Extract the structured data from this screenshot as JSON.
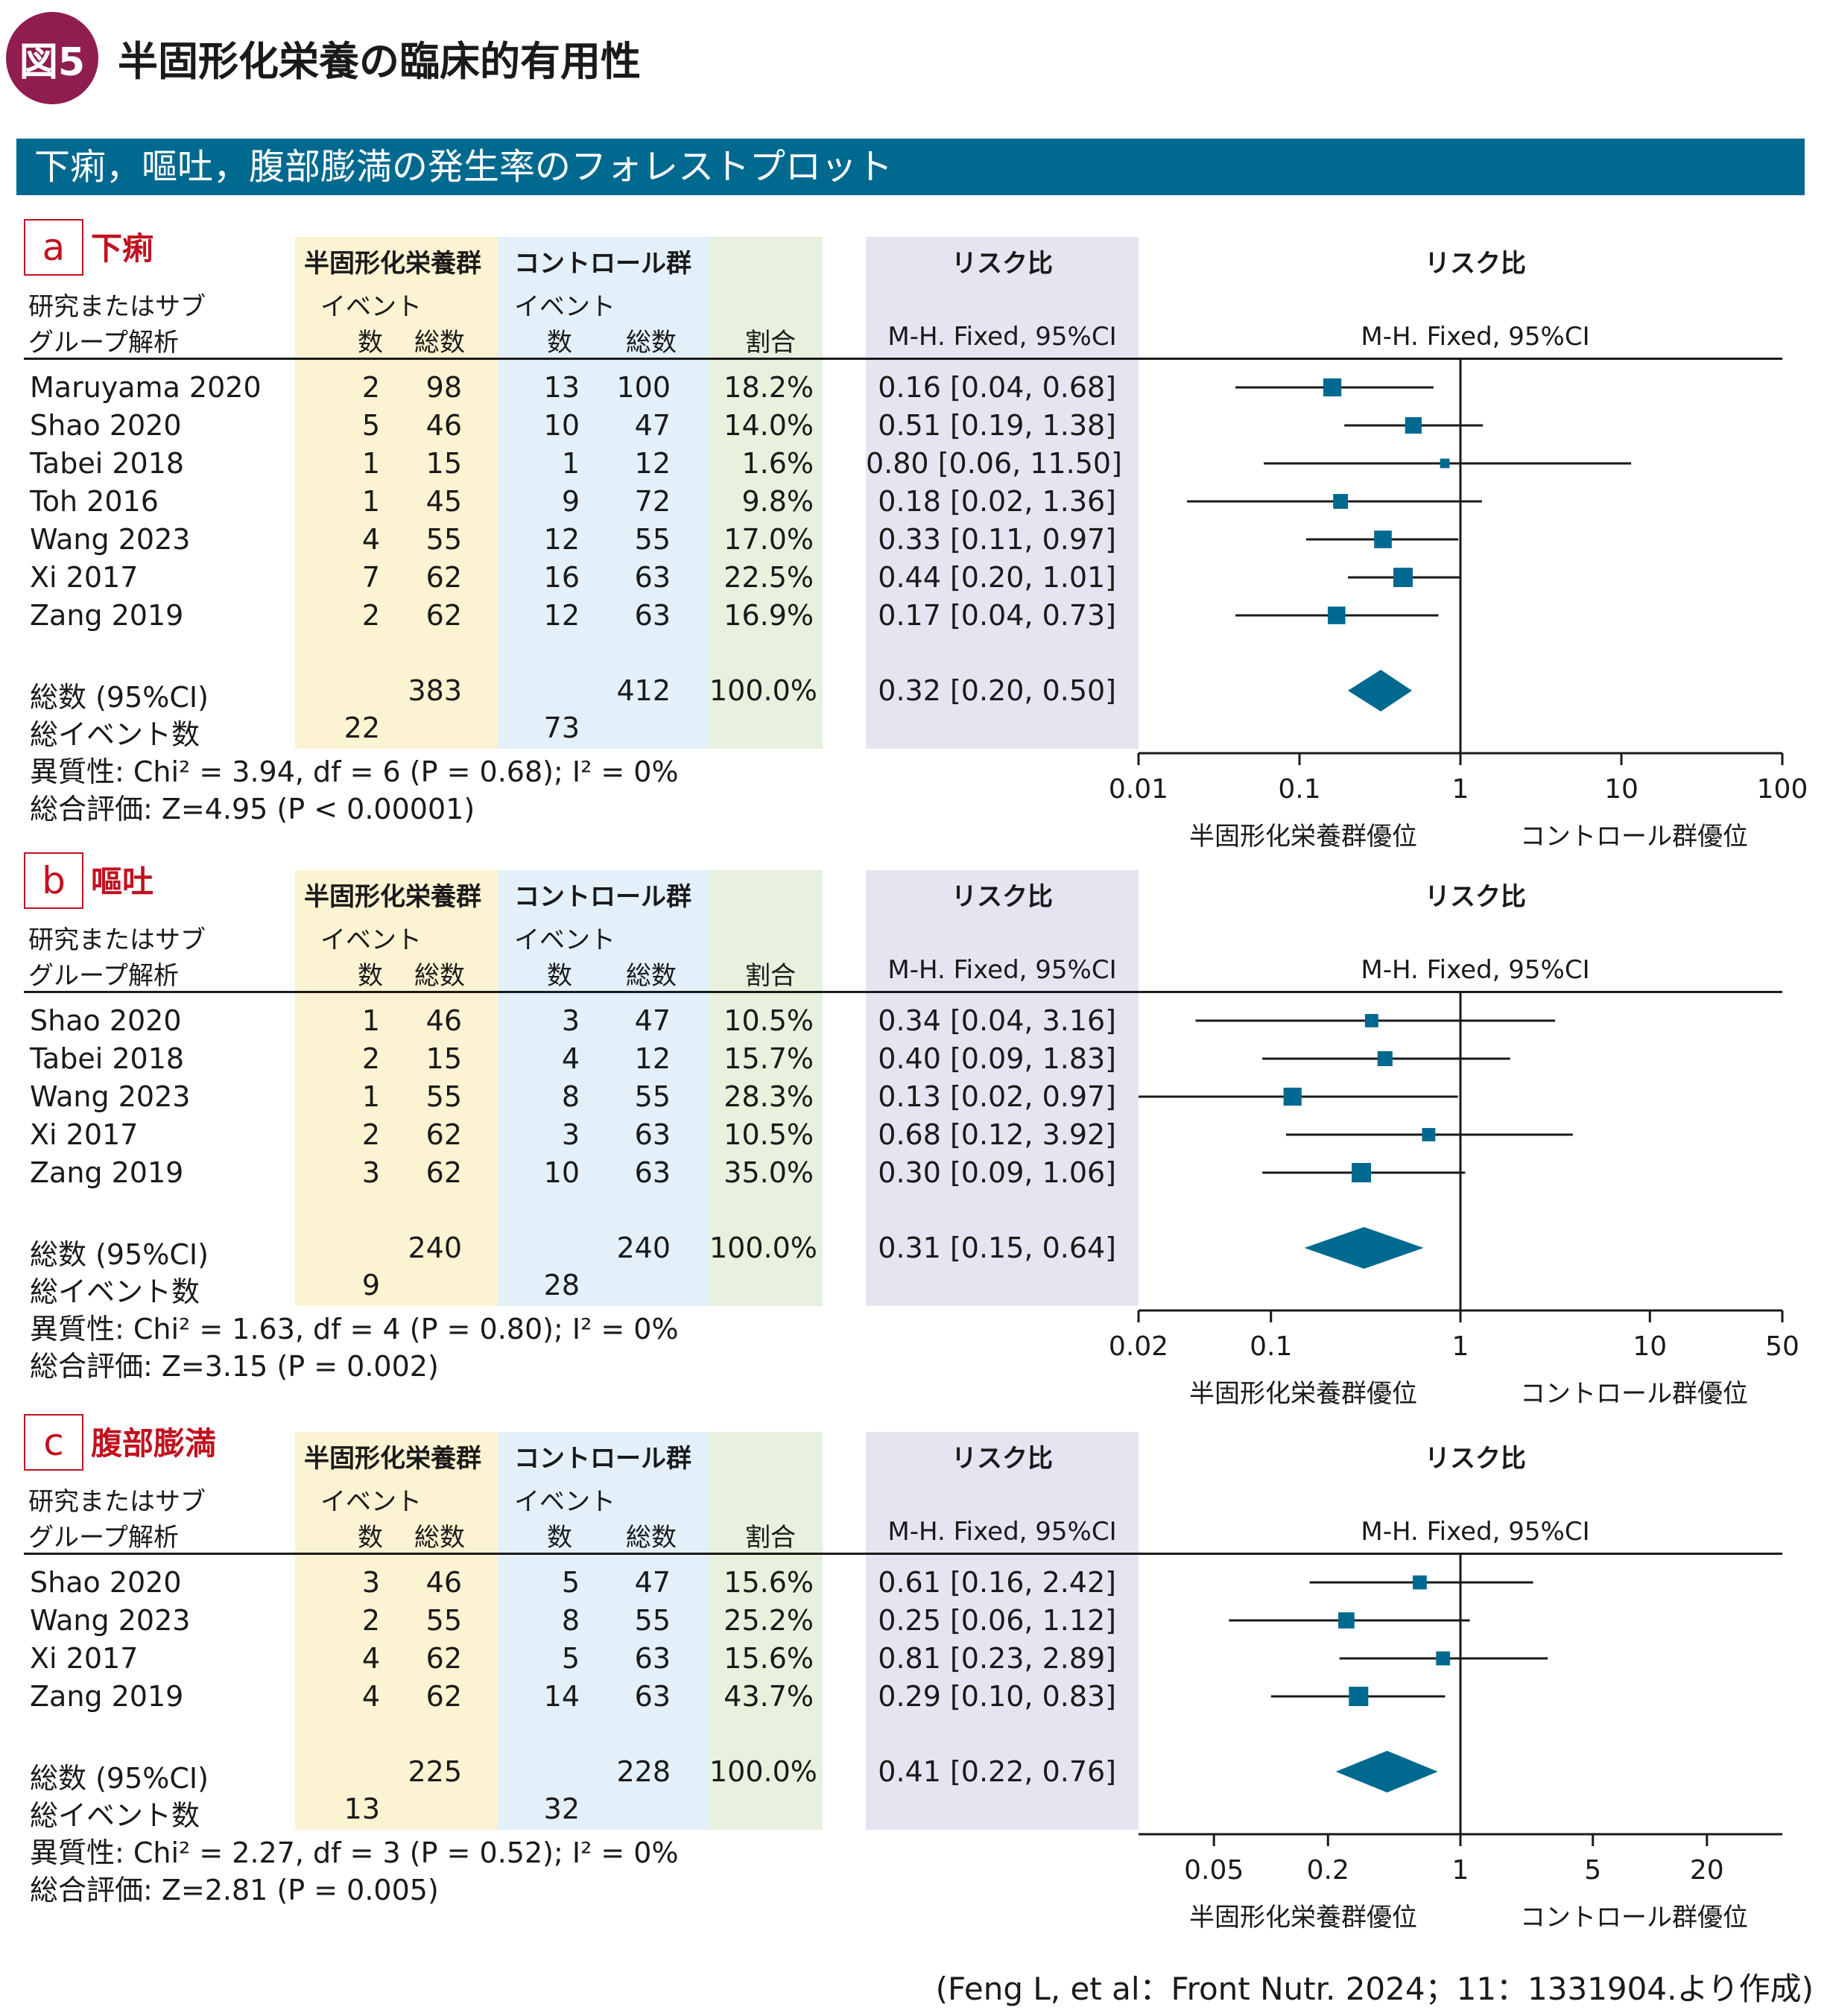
{
  "figure": {
    "badge": "図5",
    "title": "半固形化栄養の臨床的有用性"
  },
  "banner": "下痢，嘔吐，腹部膨満の発生率のフォレストプロット",
  "headers": {
    "experimental": "半固形化栄養群",
    "control": "コントロール群",
    "study_line1": "研究またはサブ",
    "study_line2": "グループ解析",
    "events": "イベント",
    "count": "数",
    "total": "総数",
    "weight": "割合",
    "rr": "リスク比",
    "method": "M-H. Fixed, 95%CI"
  },
  "labels": {
    "total_row": "総数 (95%CI)",
    "events_row": "総イベント数"
  },
  "favours": {
    "left": "半固形化栄養群優位",
    "right": "コントロール群優位"
  },
  "colors": {
    "accent": "#00698f",
    "badge": "#8f1d4f",
    "tag": "#c1121f"
  },
  "footnote": "(Feng L, et al：Front Nutr. 2024；11：1331904.より作成)",
  "chart_data": [
    {
      "type": "forest",
      "letter": "a",
      "outcome": "下痢",
      "scale": "log",
      "xlim": [
        0.01,
        100
      ],
      "ticks": [
        0.01,
        0.1,
        1,
        10,
        100
      ],
      "tick_labels": [
        "0.01",
        "0.1",
        "1",
        "10",
        "100"
      ],
      "studies": [
        {
          "name": "Maruyama 2020",
          "e_events": "2",
          "e_total": "98",
          "c_events": "13",
          "c_total": "100",
          "weight": "18.2%",
          "rr_text": "0.16 [0.04, 0.68]",
          "rr": 0.16,
          "lo": 0.04,
          "hi": 0.68,
          "w": 18.2
        },
        {
          "name": "Shao 2020",
          "e_events": "5",
          "e_total": "46",
          "c_events": "10",
          "c_total": "47",
          "weight": "14.0%",
          "rr_text": "0.51 [0.19, 1.38]",
          "rr": 0.51,
          "lo": 0.19,
          "hi": 1.38,
          "w": 14.0
        },
        {
          "name": "Tabei 2018",
          "e_events": "1",
          "e_total": "15",
          "c_events": "1",
          "c_total": "12",
          "weight": "1.6%",
          "rr_text": "0.80 [0.06, 11.50]",
          "rr": 0.8,
          "lo": 0.06,
          "hi": 11.5,
          "w": 1.6
        },
        {
          "name": "Toh 2016",
          "e_events": "1",
          "e_total": "45",
          "c_events": "9",
          "c_total": "72",
          "weight": "9.8%",
          "rr_text": "0.18 [0.02, 1.36]",
          "rr": 0.18,
          "lo": 0.02,
          "hi": 1.36,
          "w": 9.8
        },
        {
          "name": "Wang 2023",
          "e_events": "4",
          "e_total": "55",
          "c_events": "12",
          "c_total": "55",
          "weight": "17.0%",
          "rr_text": "0.33 [0.11, 0.97]",
          "rr": 0.33,
          "lo": 0.11,
          "hi": 0.97,
          "w": 17.0
        },
        {
          "name": "Xi 2017",
          "e_events": "7",
          "e_total": "62",
          "c_events": "16",
          "c_total": "63",
          "weight": "22.5%",
          "rr_text": "0.44 [0.20, 1.01]",
          "rr": 0.44,
          "lo": 0.2,
          "hi": 1.01,
          "w": 22.5
        },
        {
          "name": "Zang 2019",
          "e_events": "2",
          "e_total": "62",
          "c_events": "12",
          "c_total": "63",
          "weight": "16.9%",
          "rr_text": "0.17 [0.04, 0.73]",
          "rr": 0.17,
          "lo": 0.04,
          "hi": 0.73,
          "w": 16.9
        }
      ],
      "total": {
        "e_total": "383",
        "c_total": "412",
        "weight": "100.0%",
        "rr_text": "0.32 [0.20, 0.50]",
        "rr": 0.32,
        "lo": 0.2,
        "hi": 0.5
      },
      "total_events": {
        "e": "22",
        "c": "73"
      },
      "heterogeneity": "異質性: Chi² = 3.94, df = 6 (P = 0.68); I² = 0%",
      "overall": "総合評価: Z=4.95 (P < 0.00001)"
    },
    {
      "type": "forest",
      "letter": "b",
      "outcome": "嘔吐",
      "scale": "log",
      "xlim": [
        0.02,
        50
      ],
      "ticks": [
        0.02,
        0.1,
        1,
        10,
        50
      ],
      "tick_labels": [
        "0.02",
        "0.1",
        "1",
        "10",
        "50"
      ],
      "studies": [
        {
          "name": "Shao 2020",
          "e_events": "1",
          "e_total": "46",
          "c_events": "3",
          "c_total": "47",
          "weight": "10.5%",
          "rr_text": "0.34 [0.04, 3.16]",
          "rr": 0.34,
          "lo": 0.04,
          "hi": 3.16,
          "w": 10.5
        },
        {
          "name": "Tabei 2018",
          "e_events": "2",
          "e_total": "15",
          "c_events": "4",
          "c_total": "12",
          "weight": "15.7%",
          "rr_text": "0.40 [0.09, 1.83]",
          "rr": 0.4,
          "lo": 0.09,
          "hi": 1.83,
          "w": 15.7
        },
        {
          "name": "Wang 2023",
          "e_events": "1",
          "e_total": "55",
          "c_events": "8",
          "c_total": "55",
          "weight": "28.3%",
          "rr_text": "0.13 [0.02, 0.97]",
          "rr": 0.13,
          "lo": 0.02,
          "hi": 0.97,
          "w": 28.3
        },
        {
          "name": "Xi 2017",
          "e_events": "2",
          "e_total": "62",
          "c_events": "3",
          "c_total": "63",
          "weight": "10.5%",
          "rr_text": "0.68 [0.12, 3.92]",
          "rr": 0.68,
          "lo": 0.12,
          "hi": 3.92,
          "w": 10.5
        },
        {
          "name": "Zang 2019",
          "e_events": "3",
          "e_total": "62",
          "c_events": "10",
          "c_total": "63",
          "weight": "35.0%",
          "rr_text": "0.30 [0.09, 1.06]",
          "rr": 0.3,
          "lo": 0.09,
          "hi": 1.06,
          "w": 35.0
        }
      ],
      "total": {
        "e_total": "240",
        "c_total": "240",
        "weight": "100.0%",
        "rr_text": "0.31 [0.15, 0.64]",
        "rr": 0.31,
        "lo": 0.15,
        "hi": 0.64
      },
      "total_events": {
        "e": "9",
        "c": "28"
      },
      "heterogeneity": "異質性: Chi² = 1.63, df = 4 (P = 0.80); I² = 0%",
      "overall": "総合評価: Z=3.15 (P = 0.002)"
    },
    {
      "type": "forest",
      "letter": "c",
      "outcome": "腹部膨満",
      "scale": "log",
      "xlim": [
        0.02,
        50
      ],
      "ticks": [
        0.05,
        0.2,
        1,
        5,
        20
      ],
      "tick_labels": [
        "0.05",
        "0.2",
        "1",
        "5",
        "20"
      ],
      "studies": [
        {
          "name": "Shao 2020",
          "e_events": "3",
          "e_total": "46",
          "c_events": "5",
          "c_total": "47",
          "weight": "15.6%",
          "rr_text": "0.61 [0.16, 2.42]",
          "rr": 0.61,
          "lo": 0.16,
          "hi": 2.42,
          "w": 15.6
        },
        {
          "name": "Wang 2023",
          "e_events": "2",
          "e_total": "55",
          "c_events": "8",
          "c_total": "55",
          "weight": "25.2%",
          "rr_text": "0.25 [0.06, 1.12]",
          "rr": 0.25,
          "lo": 0.06,
          "hi": 1.12,
          "w": 25.2
        },
        {
          "name": "Xi 2017",
          "e_events": "4",
          "e_total": "62",
          "c_events": "5",
          "c_total": "63",
          "weight": "15.6%",
          "rr_text": "0.81 [0.23, 2.89]",
          "rr": 0.81,
          "lo": 0.23,
          "hi": 2.89,
          "w": 15.6
        },
        {
          "name": "Zang 2019",
          "e_events": "4",
          "e_total": "62",
          "c_events": "14",
          "c_total": "63",
          "weight": "43.7%",
          "rr_text": "0.29 [0.10, 0.83]",
          "rr": 0.29,
          "lo": 0.1,
          "hi": 0.83,
          "w": 43.7
        }
      ],
      "total": {
        "e_total": "225",
        "c_total": "228",
        "weight": "100.0%",
        "rr_text": "0.41 [0.22, 0.76]",
        "rr": 0.41,
        "lo": 0.22,
        "hi": 0.76
      },
      "total_events": {
        "e": "13",
        "c": "32"
      },
      "heterogeneity": "異質性: Chi² = 2.27, df = 3 (P = 0.52); I² = 0%",
      "overall": "総合評価: Z=2.81 (P = 0.005)"
    }
  ]
}
